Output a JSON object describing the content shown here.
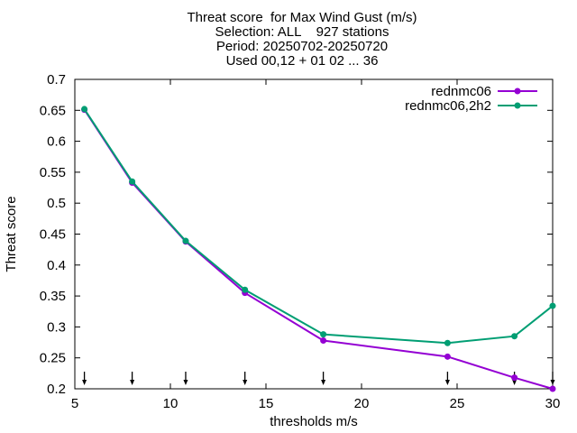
{
  "chart_data": {
    "type": "line",
    "title_lines": [
      "Threat score  for Max Wind Gust (m/s)",
      "Selection: ALL    927 stations",
      "Period: 20250702-20250720",
      "Used 00,12 + 01 02 ... 36"
    ],
    "xlabel": "thresholds m/s",
    "ylabel": "Threat score",
    "xlim": [
      5,
      30
    ],
    "ylim": [
      0.2,
      0.7
    ],
    "x_ticks": [
      5,
      10,
      15,
      20,
      25,
      30
    ],
    "y_ticks": [
      0.2,
      0.25,
      0.3,
      0.35,
      0.4,
      0.45,
      0.5,
      0.55,
      0.6,
      0.65,
      0.7
    ],
    "y_tick_labels": [
      "0.2",
      "0.25",
      "0.3",
      "0.35",
      "0.4",
      "0.45",
      "0.5",
      "0.55",
      "0.6",
      "0.65",
      "0.7"
    ],
    "legend_position": "top-right",
    "grid": false,
    "series": [
      {
        "name": "rednmc06",
        "color": "#9400d3",
        "x": [
          5.5,
          8.0,
          10.8,
          13.9,
          18.0,
          24.5,
          28.0,
          30.0
        ],
        "values": [
          0.651,
          0.533,
          0.438,
          0.355,
          0.278,
          0.252,
          0.218,
          0.2
        ]
      },
      {
        "name": "rednmc06,2h2",
        "color": "#009e73",
        "x": [
          5.5,
          8.0,
          10.8,
          13.9,
          18.0,
          24.5,
          28.0,
          30.0
        ],
        "values": [
          0.652,
          0.535,
          0.439,
          0.36,
          0.288,
          0.274,
          0.285,
          0.334
        ]
      }
    ],
    "threshold_markers": [
      5.5,
      8.0,
      10.8,
      13.9,
      18.0,
      24.5,
      28.0,
      30.0
    ]
  }
}
